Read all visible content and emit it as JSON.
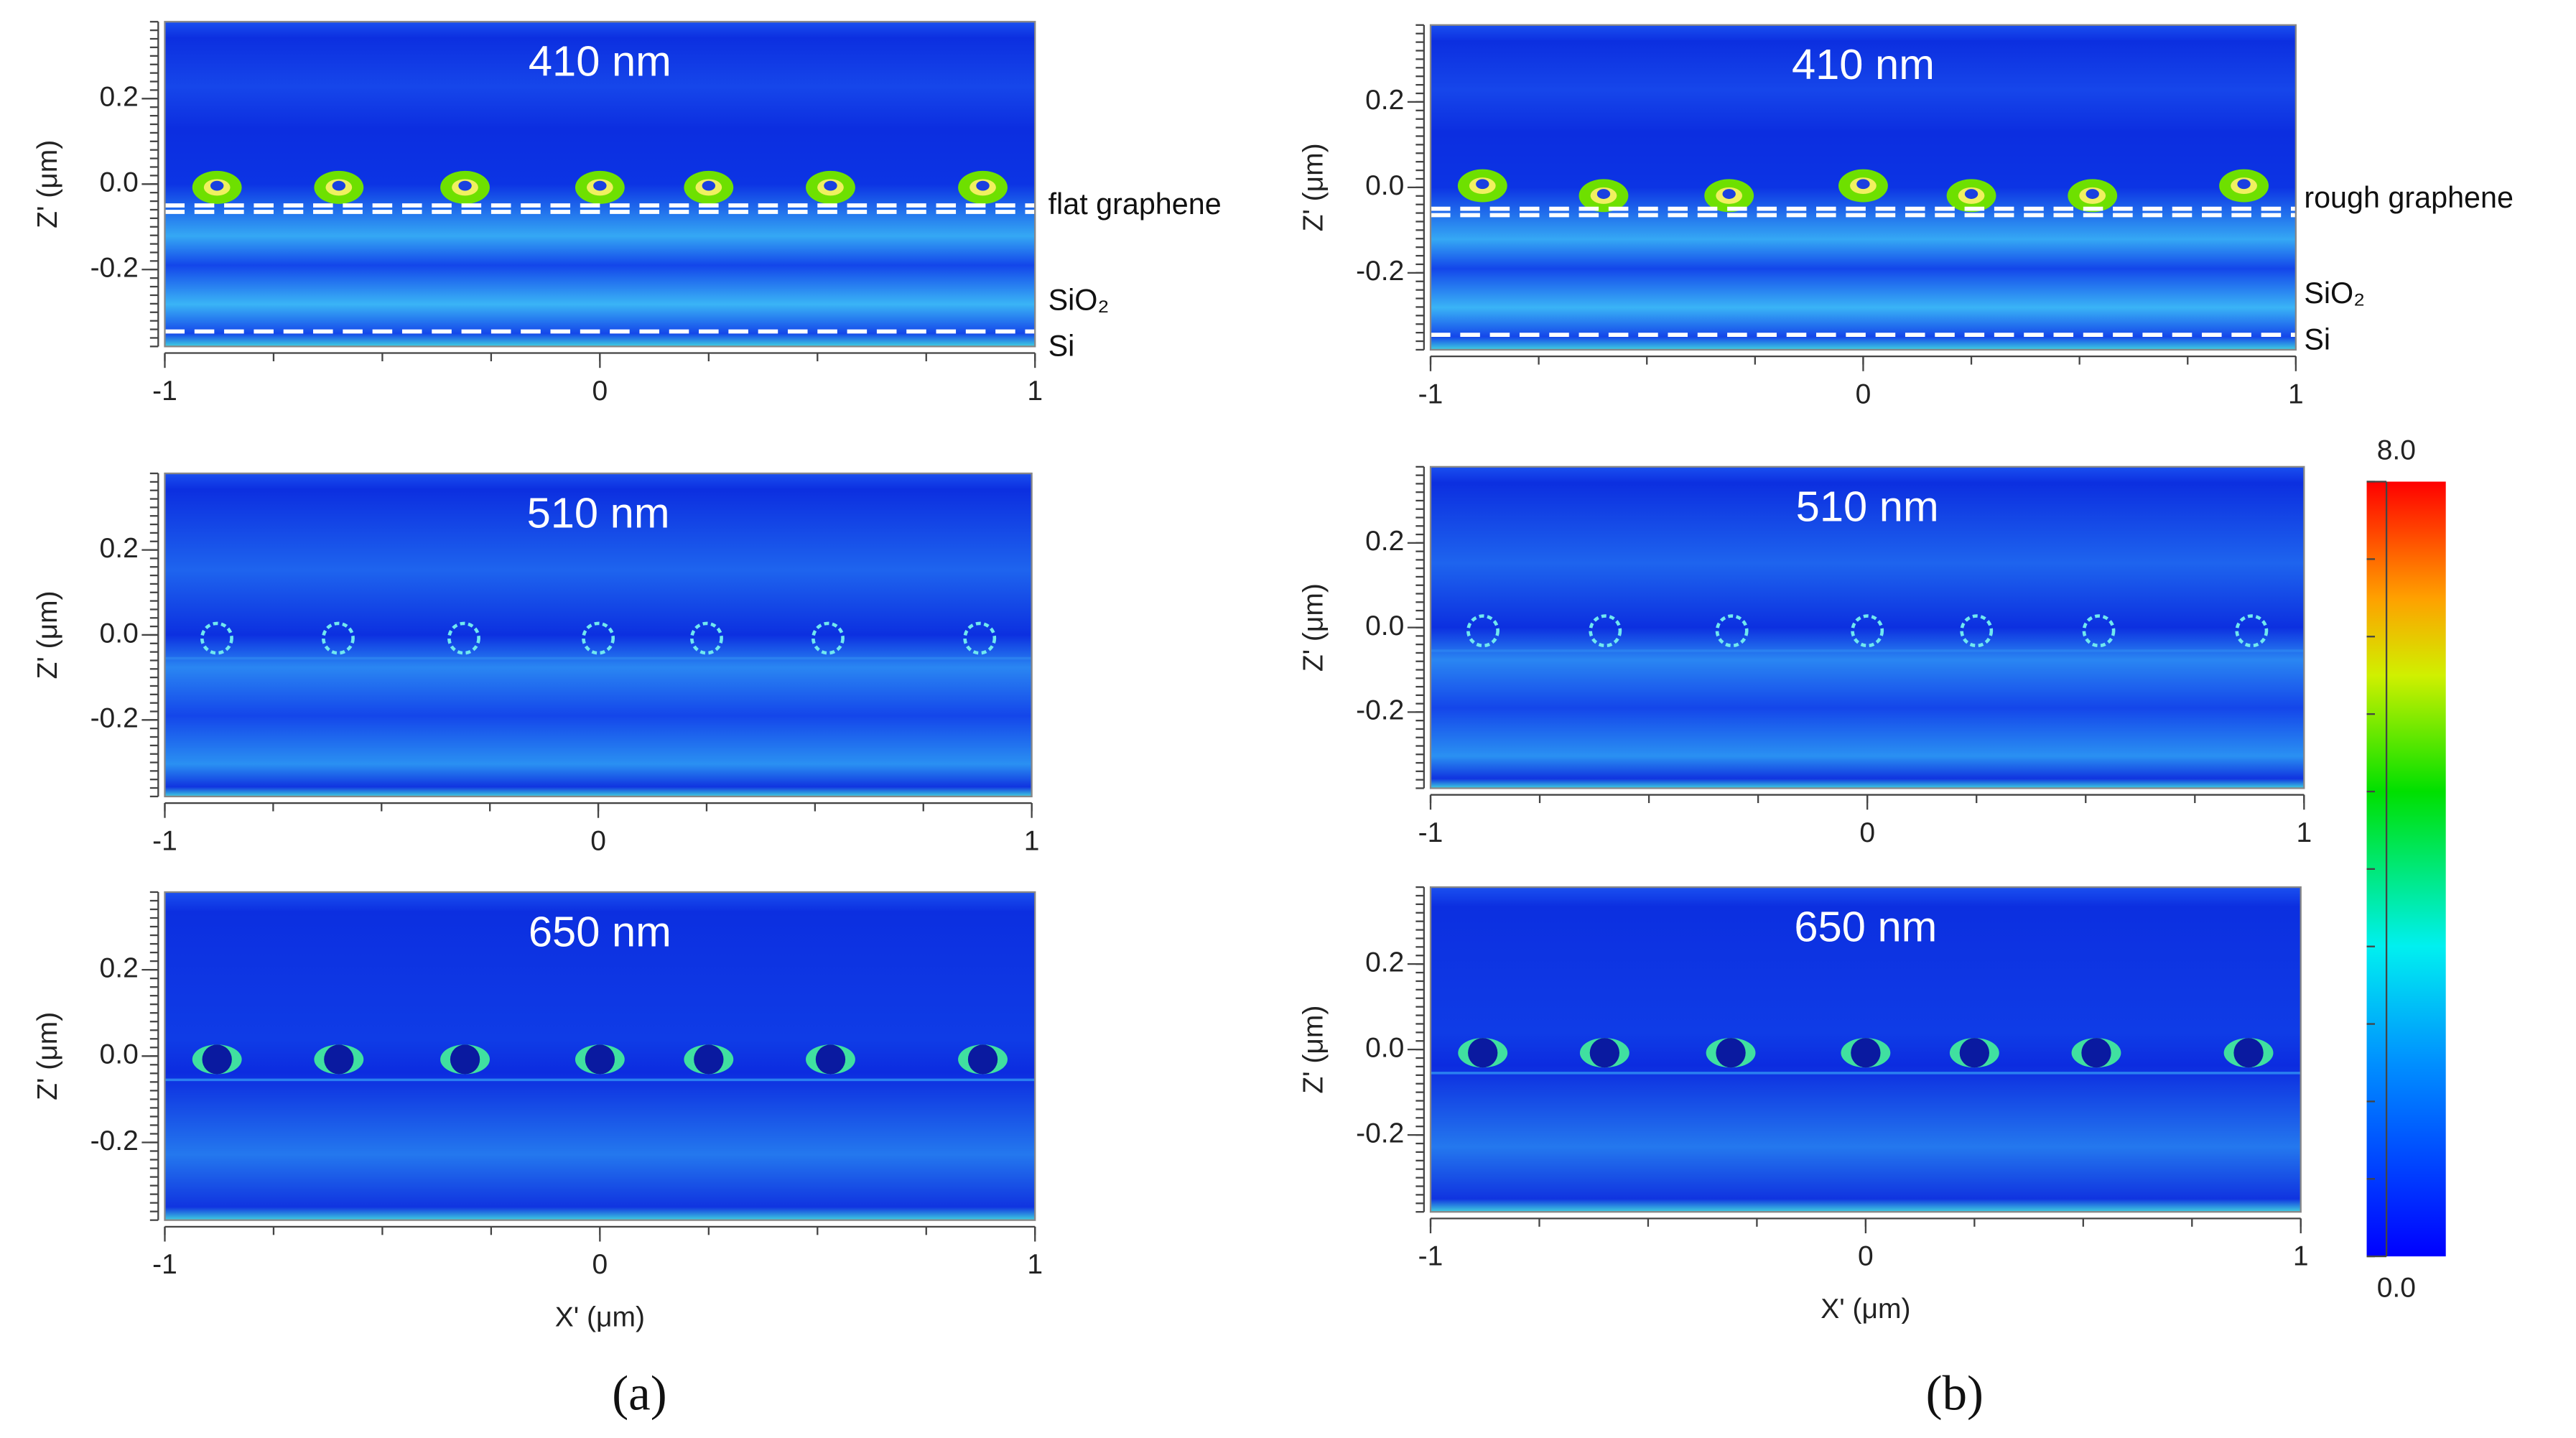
{
  "chart_data": [
    {
      "type": "heatmap",
      "title": "410 nm",
      "ylabel": "Z' (μm)",
      "xlim": [
        -1,
        1
      ],
      "ylim": [
        -0.38,
        0.38
      ],
      "xticks": [
        -1,
        0,
        1
      ],
      "yticks": [
        0.2,
        {
          "value": 0,
          "label": "0.0"
        },
        -0.2
      ],
      "annotations": [
        "flat graphene",
        "SiO₂",
        "Si"
      ]
    },
    {
      "type": "heatmap",
      "title": "410 nm",
      "ylabel": "Z' (μm)",
      "xlim": [
        -1,
        1
      ],
      "ylim": [
        -0.38,
        0.38
      ],
      "xticks": [
        -1,
        0,
        1
      ],
      "yticks": [
        0.2,
        {
          "value": 0,
          "label": "0.0"
        },
        -0.2
      ],
      "annotations": [
        "rough graphene",
        "SiO₂",
        "Si"
      ]
    },
    {
      "type": "heatmap",
      "title": "510 nm",
      "ylabel": "Z' (μm)",
      "xlim": [
        -1,
        1
      ],
      "ylim": [
        -0.38,
        0.38
      ],
      "xticks": [
        -1,
        0,
        1
      ],
      "yticks": [
        0.2,
        {
          "value": 0,
          "label": "0.0"
        },
        -0.2
      ]
    },
    {
      "type": "heatmap",
      "title": "510 nm",
      "ylabel": "Z' (μm)",
      "xlim": [
        -1,
        1
      ],
      "ylim": [
        -0.38,
        0.38
      ],
      "xticks": [
        -1,
        0,
        1
      ],
      "yticks": [
        0.2,
        {
          "value": 0,
          "label": "0.0"
        },
        -0.2
      ]
    },
    {
      "type": "heatmap",
      "title": "650 nm",
      "ylabel": "Z' (μm)",
      "xlabel": "X' (μm)",
      "xlim": [
        -1,
        1
      ],
      "ylim": [
        -0.38,
        0.38
      ],
      "xticks": [
        -1,
        0,
        1
      ],
      "yticks": [
        0.2,
        {
          "value": 0,
          "label": "0.0"
        },
        -0.2
      ]
    },
    {
      "type": "heatmap",
      "title": "650 nm",
      "ylabel": "Z' (μm)",
      "xlabel": "X' (μm)",
      "xlim": [
        -1,
        1
      ],
      "ylim": [
        -0.38,
        0.38
      ],
      "xticks": [
        -1,
        0,
        1
      ],
      "yticks": [
        0.2,
        {
          "value": 0,
          "label": "0.0"
        },
        -0.2
      ]
    }
  ],
  "colorbar": {
    "lim": [
      0,
      8
    ],
    "ticks": [
      {
        "value": 8,
        "label": "8.0"
      },
      {
        "value": 0,
        "label": "0.0"
      }
    ]
  },
  "panel_labels": [
    "(a)",
    "(b)"
  ]
}
